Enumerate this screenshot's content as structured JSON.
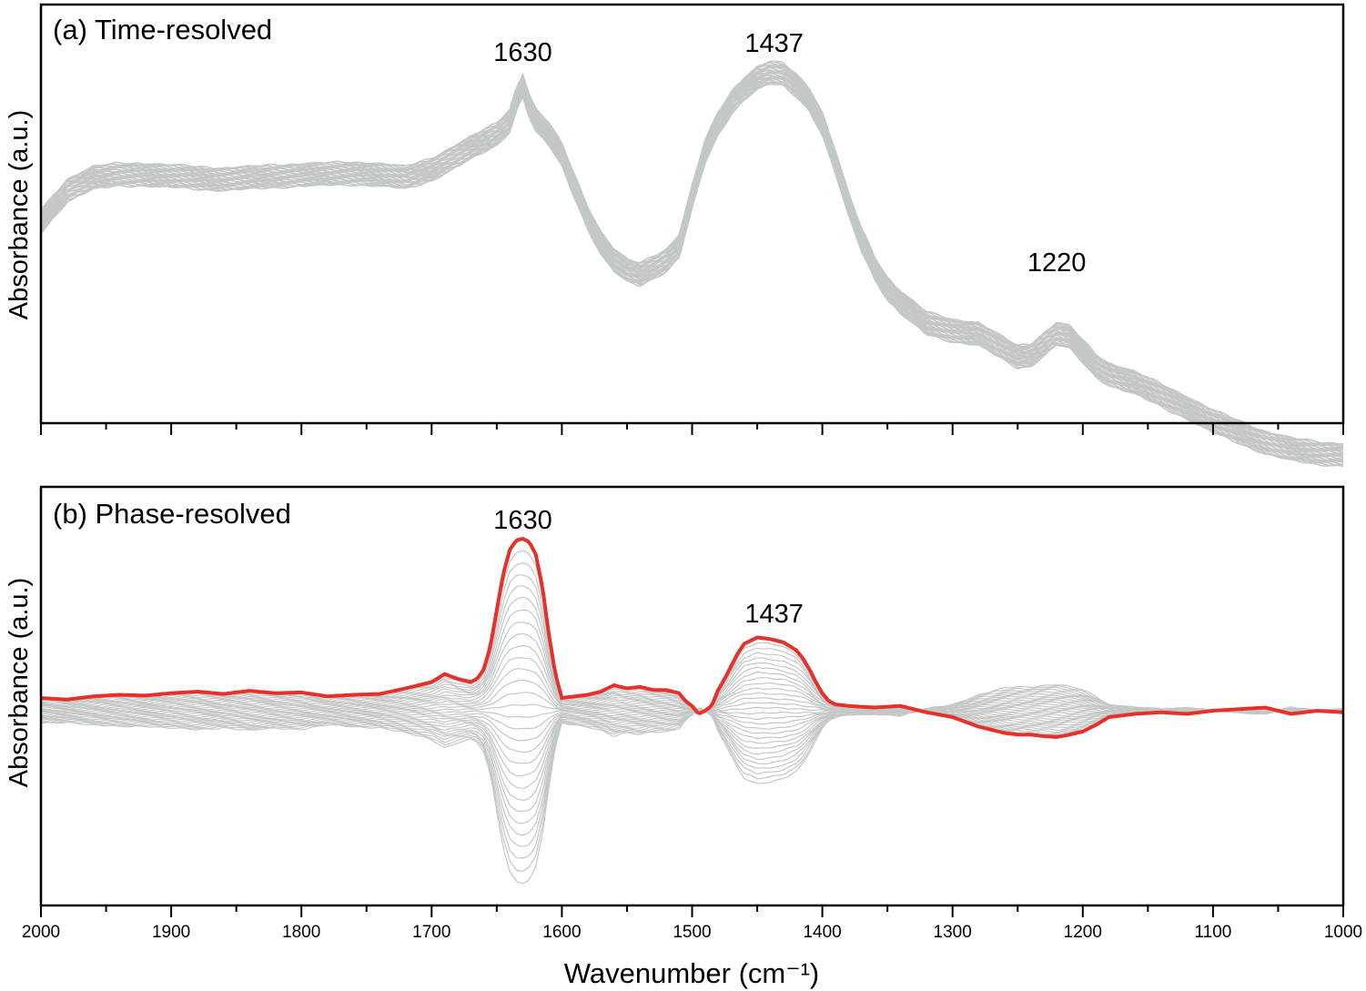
{
  "chart_data": [
    {
      "type": "line",
      "panel_label": "(a) Time-resolved",
      "xlabel": "",
      "ylabel": "Absorbance (a.u.)",
      "xlim": [
        2000,
        1000
      ],
      "x_reversed": true,
      "y_ticks_shown": false,
      "grid": false,
      "n_traces": 30,
      "trace_color": "#c3c8c6",
      "annotations": [
        {
          "text": "1630",
          "x": 1630
        },
        {
          "text": "1437",
          "x": 1437
        },
        {
          "text": "1220",
          "x": 1220
        }
      ],
      "series": [
        {
          "values_desc": "mean spectrum",
          "x": [
            2000,
            1980,
            1960,
            1940,
            1920,
            1900,
            1880,
            1860,
            1840,
            1820,
            1800,
            1780,
            1760,
            1740,
            1720,
            1700,
            1690,
            1680,
            1670,
            1660,
            1650,
            1640,
            1635,
            1630,
            1625,
            1620,
            1610,
            1600,
            1590,
            1580,
            1570,
            1560,
            1550,
            1540,
            1530,
            1520,
            1510,
            1500,
            1490,
            1480,
            1470,
            1460,
            1450,
            1440,
            1430,
            1420,
            1410,
            1400,
            1390,
            1380,
            1370,
            1360,
            1350,
            1340,
            1320,
            1300,
            1280,
            1260,
            1250,
            1240,
            1230,
            1220,
            1210,
            1200,
            1190,
            1180,
            1160,
            1140,
            1120,
            1100,
            1080,
            1060,
            1040,
            1020,
            1000
          ],
          "y": [
            0.55,
            0.64,
            0.675,
            0.685,
            0.685,
            0.68,
            0.675,
            0.672,
            0.675,
            0.68,
            0.684,
            0.686,
            0.688,
            0.685,
            0.675,
            0.7,
            0.72,
            0.74,
            0.76,
            0.78,
            0.8,
            0.84,
            0.9,
            0.94,
            0.88,
            0.84,
            0.8,
            0.74,
            0.65,
            0.56,
            0.49,
            0.44,
            0.41,
            0.4,
            0.42,
            0.44,
            0.48,
            0.62,
            0.75,
            0.83,
            0.89,
            0.93,
            0.96,
            0.975,
            0.97,
            0.94,
            0.9,
            0.83,
            0.72,
            0.6,
            0.5,
            0.42,
            0.36,
            0.32,
            0.26,
            0.24,
            0.23,
            0.185,
            0.165,
            0.17,
            0.2,
            0.23,
            0.22,
            0.18,
            0.14,
            0.115,
            0.09,
            0.055,
            0.02,
            -0.02,
            -0.05,
            -0.08,
            -0.1,
            -0.11,
            -0.115
          ]
        }
      ]
    },
    {
      "type": "line",
      "panel_label": "(b) Phase-resolved",
      "xlabel": "Wavenumber (cm⁻¹)",
      "ylabel": "Absorbance (a.u.)",
      "xlim": [
        2000,
        1000
      ],
      "x_reversed": true,
      "x_ticks": [
        2000,
        1900,
        1800,
        1700,
        1600,
        1500,
        1400,
        1300,
        1200,
        1100,
        1000
      ],
      "y_ticks_shown": false,
      "grid": false,
      "n_traces": 30,
      "trace_color": "#c3c8c6",
      "highlight_color": "#e8302a",
      "annotations": [
        {
          "text": "1630",
          "x": 1630
        },
        {
          "text": "1437",
          "x": 1437
        }
      ],
      "series": [
        {
          "values_desc": "highlighted spectrum",
          "x": [
            2000,
            1980,
            1960,
            1940,
            1920,
            1900,
            1880,
            1860,
            1840,
            1820,
            1800,
            1780,
            1760,
            1740,
            1720,
            1700,
            1690,
            1680,
            1670,
            1665,
            1660,
            1655,
            1650,
            1645,
            1640,
            1635,
            1630,
            1625,
            1620,
            1615,
            1610,
            1605,
            1600,
            1590,
            1580,
            1570,
            1560,
            1550,
            1540,
            1530,
            1520,
            1510,
            1505,
            1500,
            1495,
            1490,
            1485,
            1480,
            1475,
            1470,
            1465,
            1460,
            1455,
            1450,
            1440,
            1430,
            1420,
            1415,
            1410,
            1405,
            1400,
            1395,
            1390,
            1380,
            1360,
            1340,
            1320,
            1300,
            1280,
            1260,
            1250,
            1240,
            1230,
            1220,
            1210,
            1200,
            1190,
            1180,
            1160,
            1140,
            1120,
            1100,
            1080,
            1060,
            1040,
            1020,
            1000
          ],
          "y": [
            0.0,
            -0.01,
            0.01,
            0.02,
            0.015,
            0.03,
            0.04,
            0.025,
            0.045,
            0.03,
            0.035,
            0.01,
            0.02,
            0.025,
            0.06,
            0.1,
            0.15,
            0.12,
            0.1,
            0.12,
            0.18,
            0.32,
            0.55,
            0.78,
            0.93,
            0.99,
            1.0,
            0.98,
            0.9,
            0.7,
            0.4,
            0.15,
            0.0,
            0.01,
            0.02,
            0.04,
            0.08,
            0.06,
            0.07,
            0.05,
            0.05,
            0.03,
            -0.02,
            -0.05,
            -0.1,
            -0.08,
            -0.05,
            0.05,
            0.12,
            0.2,
            0.28,
            0.34,
            0.36,
            0.38,
            0.37,
            0.35,
            0.3,
            0.25,
            0.18,
            0.1,
            0.03,
            -0.02,
            -0.04,
            -0.05,
            -0.06,
            -0.05,
            -0.09,
            -0.12,
            -0.18,
            -0.22,
            -0.23,
            -0.23,
            -0.24,
            -0.245,
            -0.23,
            -0.21,
            -0.17,
            -0.12,
            -0.1,
            -0.09,
            -0.1,
            -0.08,
            -0.07,
            -0.06,
            -0.1,
            -0.08,
            -0.09
          ]
        }
      ]
    }
  ]
}
